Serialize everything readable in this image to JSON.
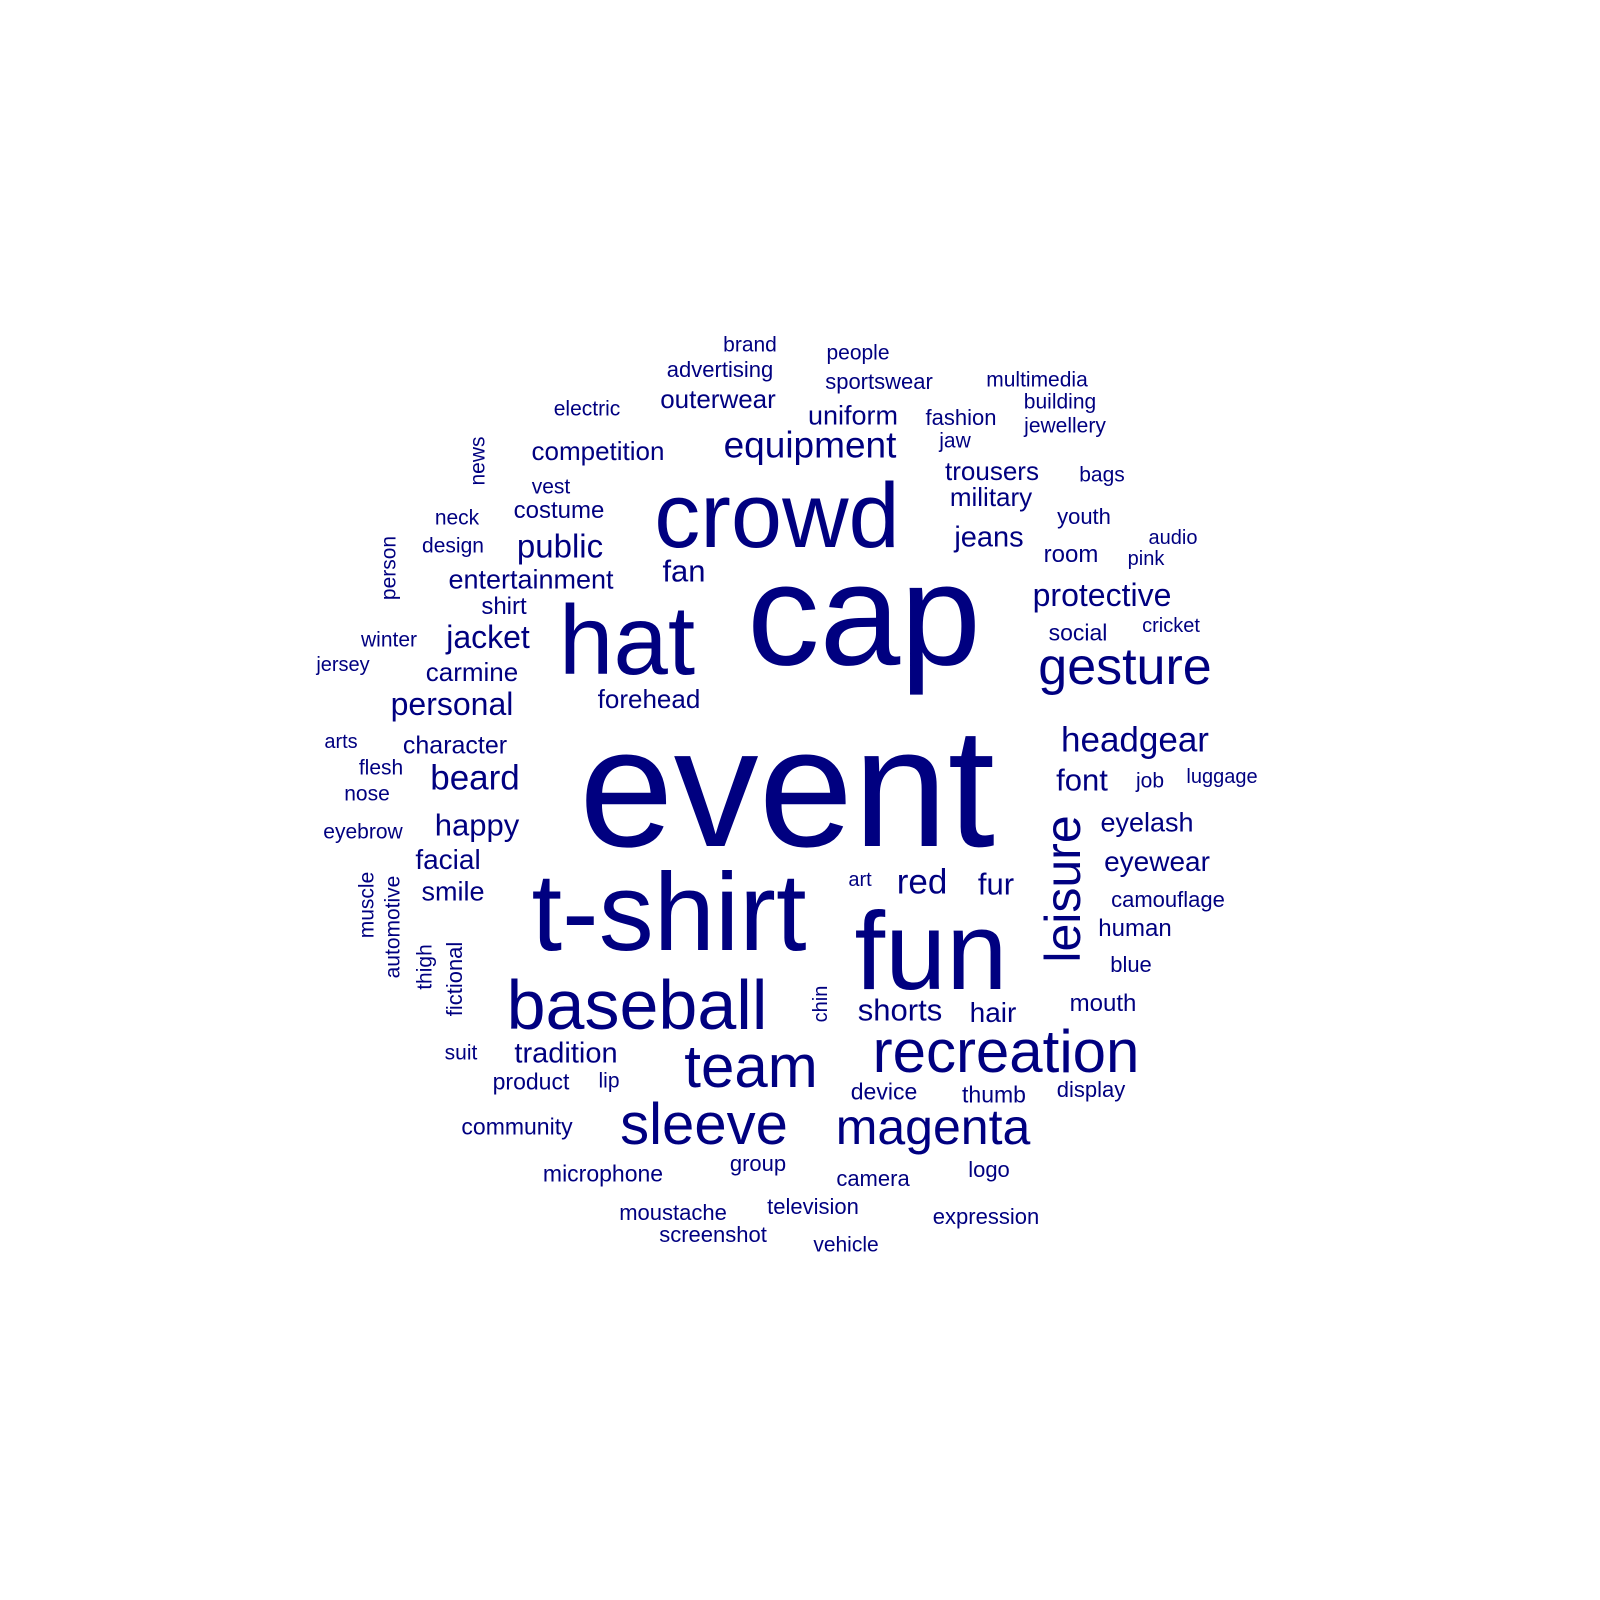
{
  "word_cloud": {
    "color": "#000080",
    "words": [
      "event",
      "cap",
      "t-shirt",
      "fun",
      "hat",
      "crowd",
      "baseball",
      "recreation",
      "team",
      "sleeve",
      "magenta",
      "gesture",
      "leisure",
      "equipment",
      "headgear",
      "protective",
      "public",
      "jacket",
      "personal",
      "beard",
      "happy",
      "tradition",
      "shorts",
      "red",
      "fur",
      "font",
      "fan",
      "entertainment",
      "competition",
      "outerwear",
      "uniform",
      "trousers",
      "military",
      "jeans",
      "eyelash",
      "eyewear",
      "carmine",
      "forehead",
      "character",
      "facial",
      "smile",
      "hair",
      "costume",
      "advertising",
      "sportswear",
      "fashion",
      "shirt",
      "human",
      "mouth",
      "room",
      "youth",
      "camouflage",
      "blue",
      "social",
      "product",
      "device",
      "thumb",
      "display",
      "community",
      "microphone",
      "group",
      "camera",
      "logo",
      "moustache",
      "television",
      "expression",
      "screenshot",
      "vehicle",
      "brand",
      "people",
      "multimedia",
      "building",
      "jewellery",
      "electric",
      "news",
      "vest",
      "neck",
      "design",
      "person",
      "jaw",
      "bags",
      "audio",
      "pink",
      "cricket",
      "winter",
      "jersey",
      "arts",
      "flesh",
      "nose",
      "eyebrow",
      "muscle",
      "automotive",
      "thigh",
      "fictional",
      "chin",
      "art",
      "job",
      "luggage",
      "suit",
      "lip"
    ]
  }
}
